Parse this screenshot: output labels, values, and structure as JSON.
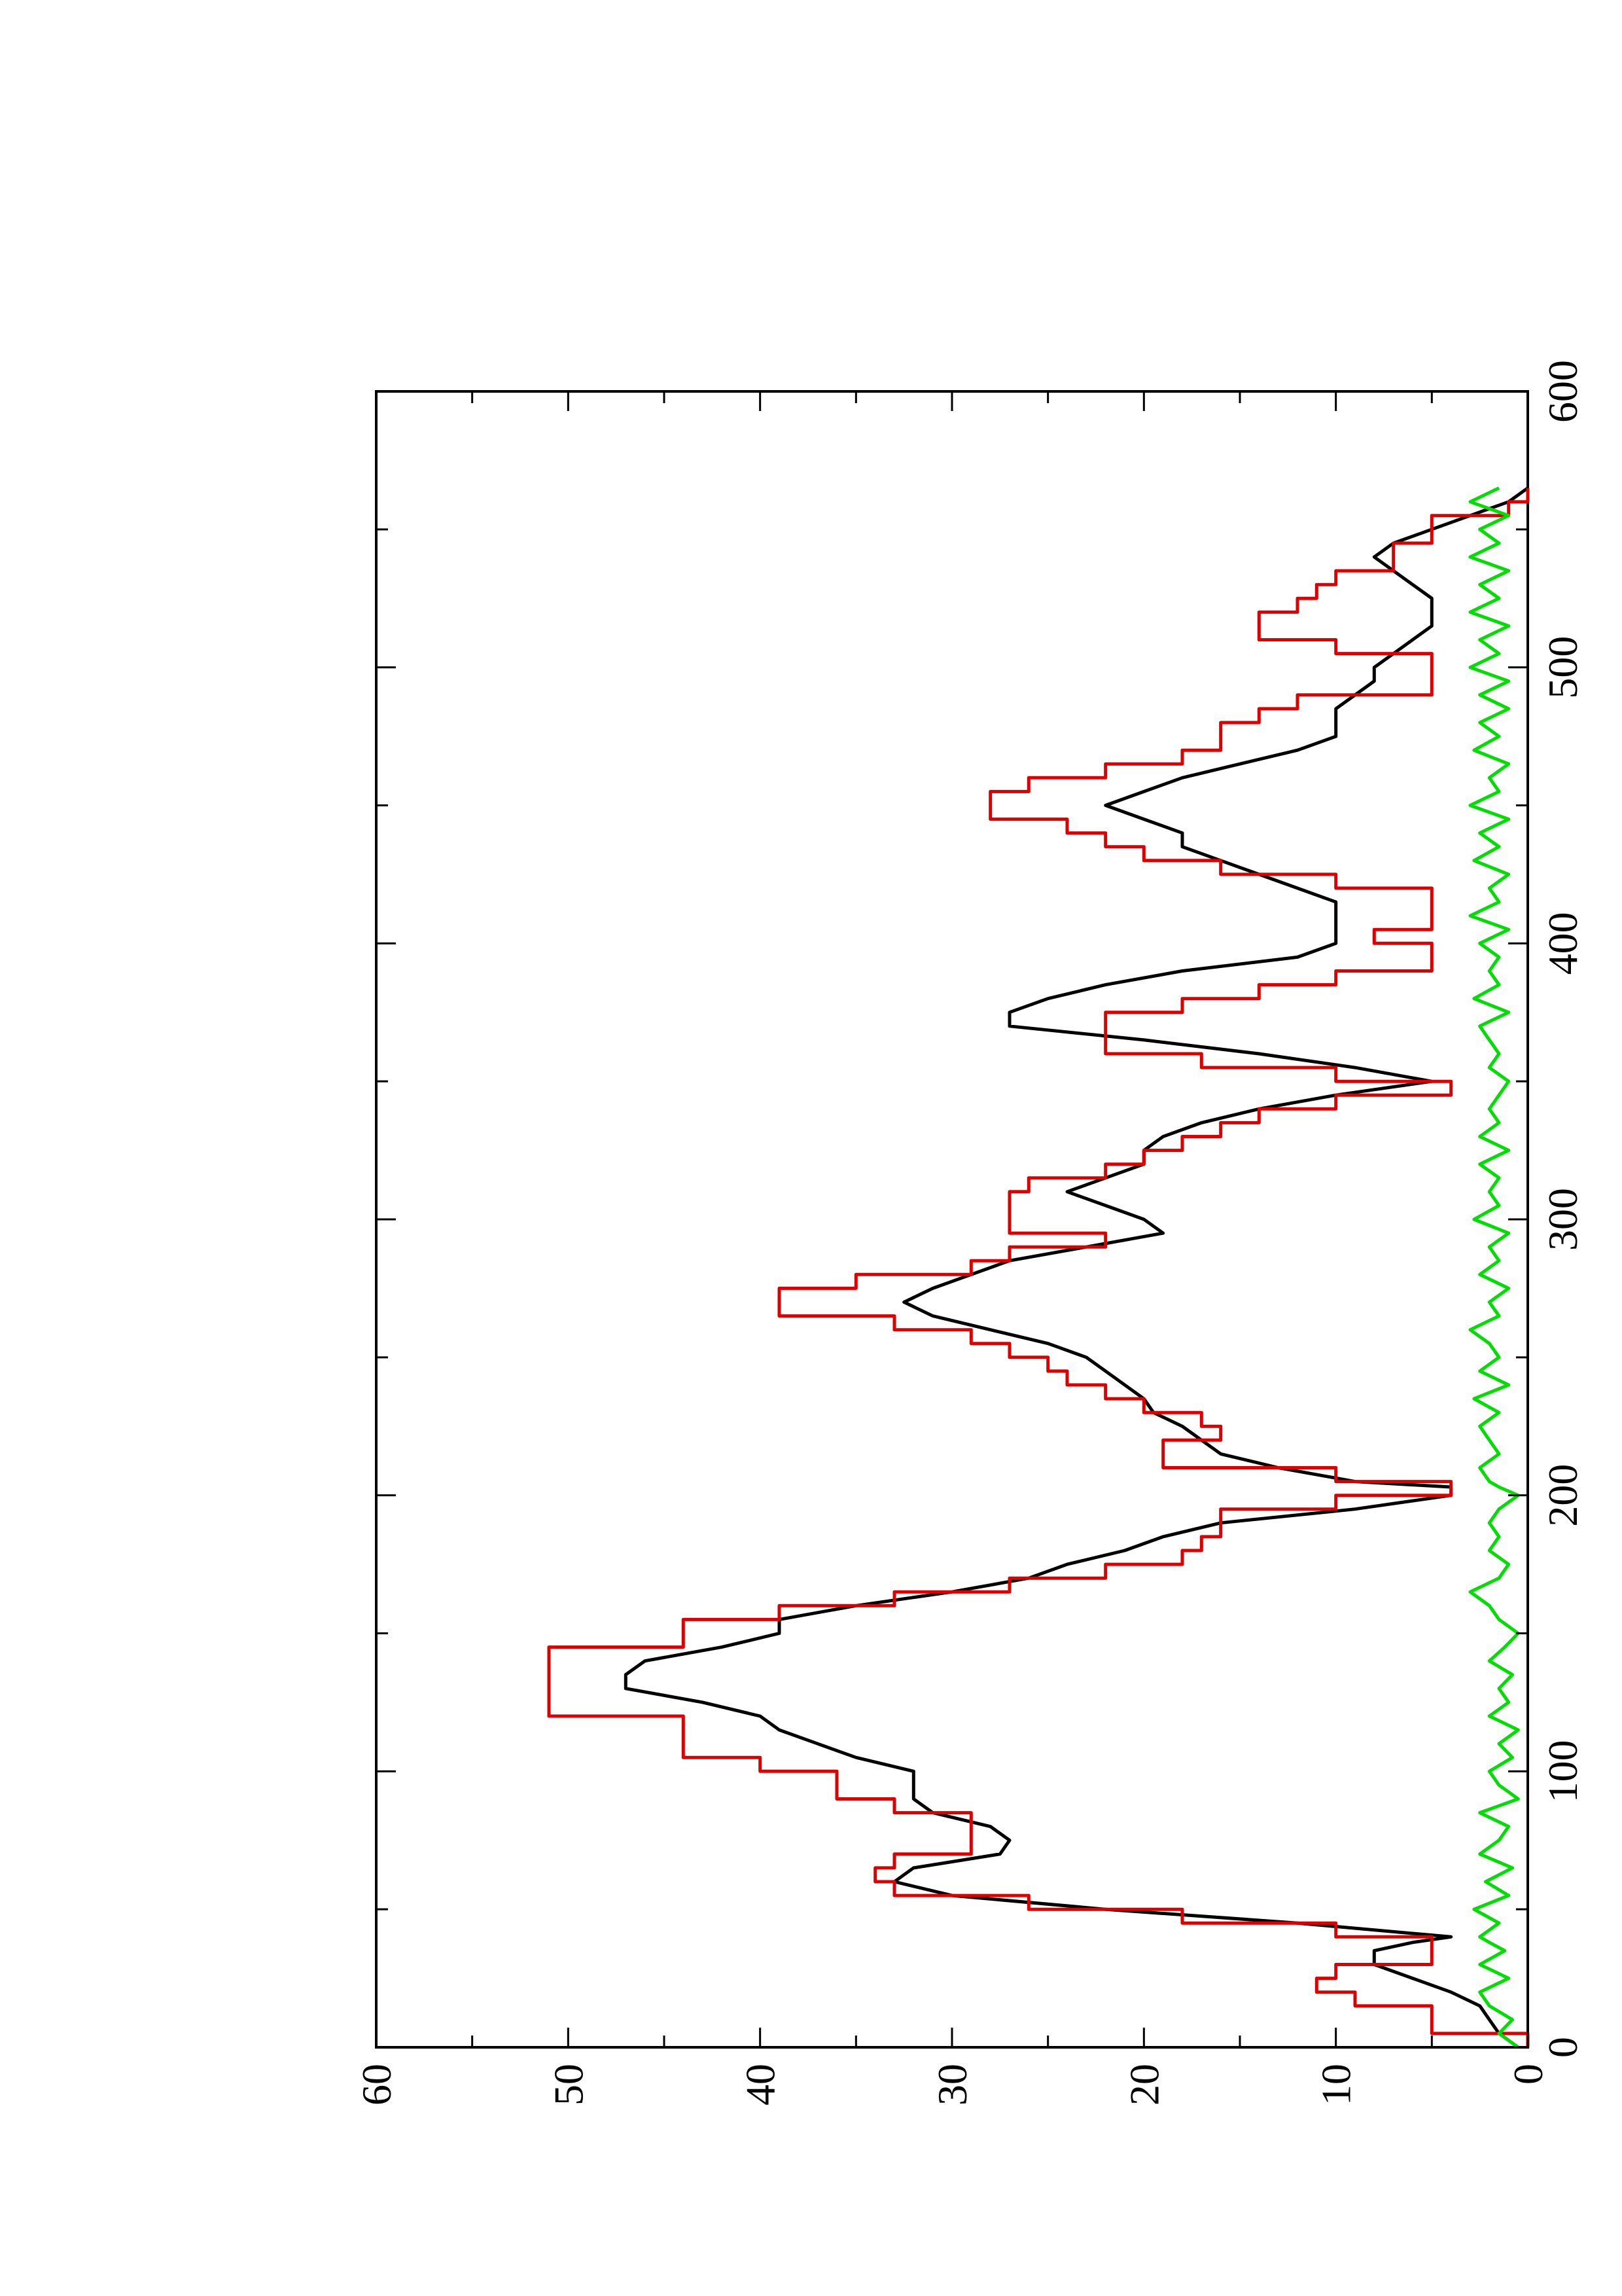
{
  "chart_data": {
    "type": "line",
    "title": "",
    "xlabel": "",
    "ylabel": "",
    "xlim": [
      0,
      600
    ],
    "ylim": [
      0,
      60
    ],
    "x_ticks": [
      0,
      100,
      200,
      300,
      400,
      500,
      600
    ],
    "y_ticks": [
      0,
      10,
      20,
      30,
      40,
      50,
      60
    ],
    "x_tick_labels": [
      "0",
      "100",
      "200",
      "300",
      "400",
      "500",
      "600"
    ],
    "y_tick_labels": [
      "0",
      "10",
      "20",
      "30",
      "40",
      "50",
      "60"
    ],
    "orientation": "rotated 90° counter-clockwise (landscape plot on portrait page)",
    "grid": false,
    "legend": "none",
    "series": [
      {
        "color": "#000000",
        "style": "solid",
        "x": [
          0,
          5,
          10,
          15,
          20,
          25,
          30,
          35,
          38,
          40,
          45,
          50,
          55,
          60,
          65,
          70,
          75,
          80,
          85,
          90,
          95,
          100,
          105,
          110,
          115,
          120,
          125,
          130,
          135,
          140,
          145,
          150,
          155,
          160,
          165,
          170,
          175,
          180,
          185,
          190,
          195,
          200,
          203,
          205,
          210,
          215,
          220,
          225,
          230,
          235,
          240,
          245,
          250,
          255,
          260,
          265,
          270,
          275,
          280,
          285,
          290,
          295,
          300,
          305,
          310,
          315,
          320,
          325,
          330,
          335,
          340,
          345,
          350,
          355,
          360,
          365,
          370,
          375,
          380,
          385,
          390,
          395,
          400,
          405,
          410,
          415,
          420,
          425,
          430,
          435,
          440,
          445,
          450,
          455,
          460,
          465,
          470,
          475,
          480,
          485,
          490,
          495,
          500,
          505,
          510,
          515,
          520,
          525,
          530,
          535,
          540,
          545,
          550,
          555,
          560,
          565
        ],
        "y": [
          0.5,
          1.5,
          2,
          2.5,
          4,
          6,
          8,
          8,
          6,
          4,
          12,
          22,
          30,
          33,
          32,
          27.5,
          27,
          28,
          31,
          32,
          32,
          32,
          35,
          37,
          39,
          40,
          43,
          47,
          47,
          46,
          42,
          39,
          39,
          35,
          30,
          26,
          24,
          21,
          19,
          16,
          9,
          4,
          4,
          9,
          13,
          16,
          17,
          18,
          19.5,
          20,
          21,
          22,
          23,
          25,
          28,
          31,
          32.5,
          31,
          29,
          27,
          23,
          19,
          20,
          22,
          24,
          22,
          20,
          20,
          19,
          17,
          14,
          10,
          5,
          9,
          14,
          20,
          27,
          27,
          25,
          22,
          18,
          12,
          10,
          10,
          10,
          10,
          12,
          14,
          16,
          18,
          18,
          20,
          22,
          20,
          18,
          15,
          12,
          10,
          10,
          10,
          9,
          8,
          8,
          7,
          6,
          5,
          5,
          5,
          6,
          7,
          8,
          7,
          5,
          3,
          1,
          0
        ]
      },
      {
        "color": "#dd0000",
        "style": "step",
        "x": [
          0,
          5,
          10,
          15,
          20,
          25,
          30,
          35,
          38,
          40,
          45,
          50,
          55,
          60,
          65,
          70,
          75,
          80,
          85,
          90,
          95,
          100,
          105,
          110,
          115,
          120,
          125,
          130,
          135,
          140,
          145,
          150,
          155,
          160,
          165,
          170,
          175,
          180,
          185,
          190,
          195,
          200,
          203,
          205,
          210,
          215,
          220,
          225,
          230,
          235,
          240,
          245,
          250,
          255,
          260,
          265,
          270,
          275,
          280,
          285,
          290,
          295,
          300,
          305,
          310,
          315,
          320,
          325,
          330,
          335,
          340,
          345,
          350,
          355,
          360,
          365,
          370,
          375,
          380,
          385,
          390,
          395,
          400,
          405,
          410,
          415,
          420,
          425,
          430,
          435,
          440,
          445,
          450,
          455,
          460,
          465,
          470,
          475,
          480,
          485,
          490,
          495,
          500,
          505,
          510,
          515,
          520,
          525,
          530,
          535,
          540,
          545,
          550,
          555,
          560,
          565
        ],
        "y": [
          0,
          5,
          5,
          9,
          11,
          10,
          5,
          5,
          5,
          10,
          18,
          26,
          33,
          34,
          33,
          29,
          29,
          29,
          33,
          36,
          36,
          40,
          44,
          44,
          44,
          51,
          51,
          51,
          51,
          51,
          44,
          44,
          39,
          33,
          27,
          22,
          18,
          17,
          16,
          16,
          10,
          4,
          4,
          10,
          19,
          19,
          16,
          17,
          20,
          22,
          24,
          25,
          27,
          29,
          33,
          39,
          39,
          35,
          29,
          27,
          22,
          27,
          27,
          27,
          26,
          22,
          20,
          18,
          16,
          14,
          10,
          4,
          10,
          17,
          22,
          22,
          22,
          18,
          14,
          10,
          5,
          5,
          8,
          5,
          5,
          5,
          10,
          16,
          20,
          22,
          24,
          28,
          28,
          26,
          22,
          18,
          16,
          16,
          14,
          12,
          5,
          5,
          5,
          10,
          14,
          14,
          12,
          11,
          10,
          7,
          7,
          5,
          5,
          1,
          0,
          0
        ]
      },
      {
        "color": "#00dd00",
        "style": "solid",
        "x": [
          0,
          5,
          10,
          15,
          20,
          25,
          30,
          35,
          38,
          40,
          45,
          50,
          55,
          60,
          65,
          70,
          75,
          80,
          85,
          90,
          95,
          100,
          105,
          110,
          115,
          120,
          125,
          130,
          135,
          140,
          145,
          150,
          155,
          160,
          165,
          170,
          175,
          180,
          185,
          190,
          195,
          200,
          203,
          205,
          210,
          215,
          220,
          225,
          230,
          235,
          240,
          245,
          250,
          255,
          260,
          265,
          270,
          275,
          280,
          285,
          290,
          295,
          300,
          305,
          310,
          315,
          320,
          325,
          330,
          335,
          340,
          345,
          350,
          355,
          360,
          365,
          370,
          375,
          380,
          385,
          390,
          395,
          400,
          405,
          410,
          415,
          420,
          425,
          430,
          435,
          440,
          445,
          450,
          455,
          460,
          465,
          470,
          475,
          480,
          485,
          490,
          495,
          500,
          505,
          510,
          515,
          520,
          525,
          530,
          535,
          540,
          545,
          550,
          555,
          560,
          565
        ],
        "y": [
          0.5,
          1.5,
          0.8,
          2,
          2.5,
          1,
          2.5,
          1.2,
          2,
          2.5,
          1.5,
          2.8,
          1,
          2.2,
          0.8,
          2.5,
          1.5,
          1,
          2.5,
          0.5,
          1.5,
          2,
          0.8,
          1.5,
          0.5,
          2,
          1,
          1.5,
          0.8,
          2,
          1.2,
          0.5,
          1.5,
          2,
          3,
          1.5,
          1,
          2,
          1.5,
          2,
          1.5,
          0.5,
          1.5,
          2,
          2.5,
          1.5,
          2,
          2.5,
          1.5,
          2.8,
          1,
          2.5,
          1.5,
          2,
          3,
          1.5,
          2,
          1,
          2.5,
          1.5,
          2,
          1,
          2.8,
          1.5,
          2,
          1.5,
          2.5,
          1,
          2.5,
          1.5,
          2,
          1.5,
          1,
          2,
          1.5,
          2,
          2.5,
          1,
          2.8,
          1.5,
          2,
          1.5,
          2.5,
          1,
          3,
          1.5,
          2,
          1,
          2.8,
          1.5,
          2.5,
          1,
          3,
          1.5,
          2,
          1,
          2.8,
          1.5,
          2.5,
          1,
          2.5,
          1,
          3,
          1.5,
          2.5,
          1,
          3,
          1.5,
          2.5,
          1,
          3,
          1.5,
          2.5,
          1,
          3,
          1.5
        ]
      }
    ]
  }
}
